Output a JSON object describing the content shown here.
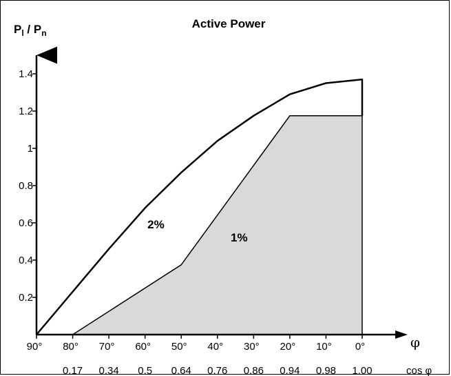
{
  "chart_data": {
    "type": "area",
    "title": "Active Power",
    "ylabel": {
      "main": "P",
      "sub1": "l",
      "sep": " / P",
      "sub2": "n"
    },
    "xlabel": "φ",
    "x_secondary_label": "cos φ",
    "x_tick_labels": [
      "90°",
      "80°",
      "70°",
      "60°",
      "50°",
      "40°",
      "30°",
      "20°",
      "10°",
      "0°"
    ],
    "x_tick_values": [
      90,
      80,
      70,
      60,
      50,
      40,
      30,
      20,
      10,
      0
    ],
    "cos_tick_labels": [
      "0.17",
      "0.34",
      "0.5",
      "0.64",
      "0.76",
      "0.86",
      "0.94",
      "0.98",
      "1.00"
    ],
    "cos_tick_positions": [
      80,
      70,
      60,
      50,
      40,
      30,
      20,
      10,
      0
    ],
    "y_ticks": [
      0.2,
      0.4,
      0.6,
      0.8,
      1,
      1.2,
      1.4
    ],
    "y_tick_labels": [
      "0.2",
      "0.4",
      "0.6",
      "0.8",
      "1",
      "1.2",
      "1.4"
    ],
    "xlim": [
      90,
      0
    ],
    "ylim": [
      0,
      1.4
    ],
    "series": [
      {
        "name": "2%",
        "x": [
          90,
          70,
          60,
          50,
          40,
          30,
          20,
          10,
          0,
          0
        ],
        "y": [
          0,
          0.46,
          0.68,
          0.87,
          1.04,
          1.175,
          1.29,
          1.35,
          1.37,
          1.175
        ]
      },
      {
        "name": "1%",
        "x": [
          80,
          50,
          20,
          0,
          0
        ],
        "y": [
          0,
          0.375,
          1.175,
          1.175,
          0
        ]
      }
    ],
    "region_labels": [
      {
        "text": "2%",
        "x": 57,
        "y": 0.57
      },
      {
        "text": "1%",
        "x": 34,
        "y": 0.5
      }
    ],
    "colors": {
      "line": "#000000",
      "fill": "#d9d9d9"
    }
  }
}
